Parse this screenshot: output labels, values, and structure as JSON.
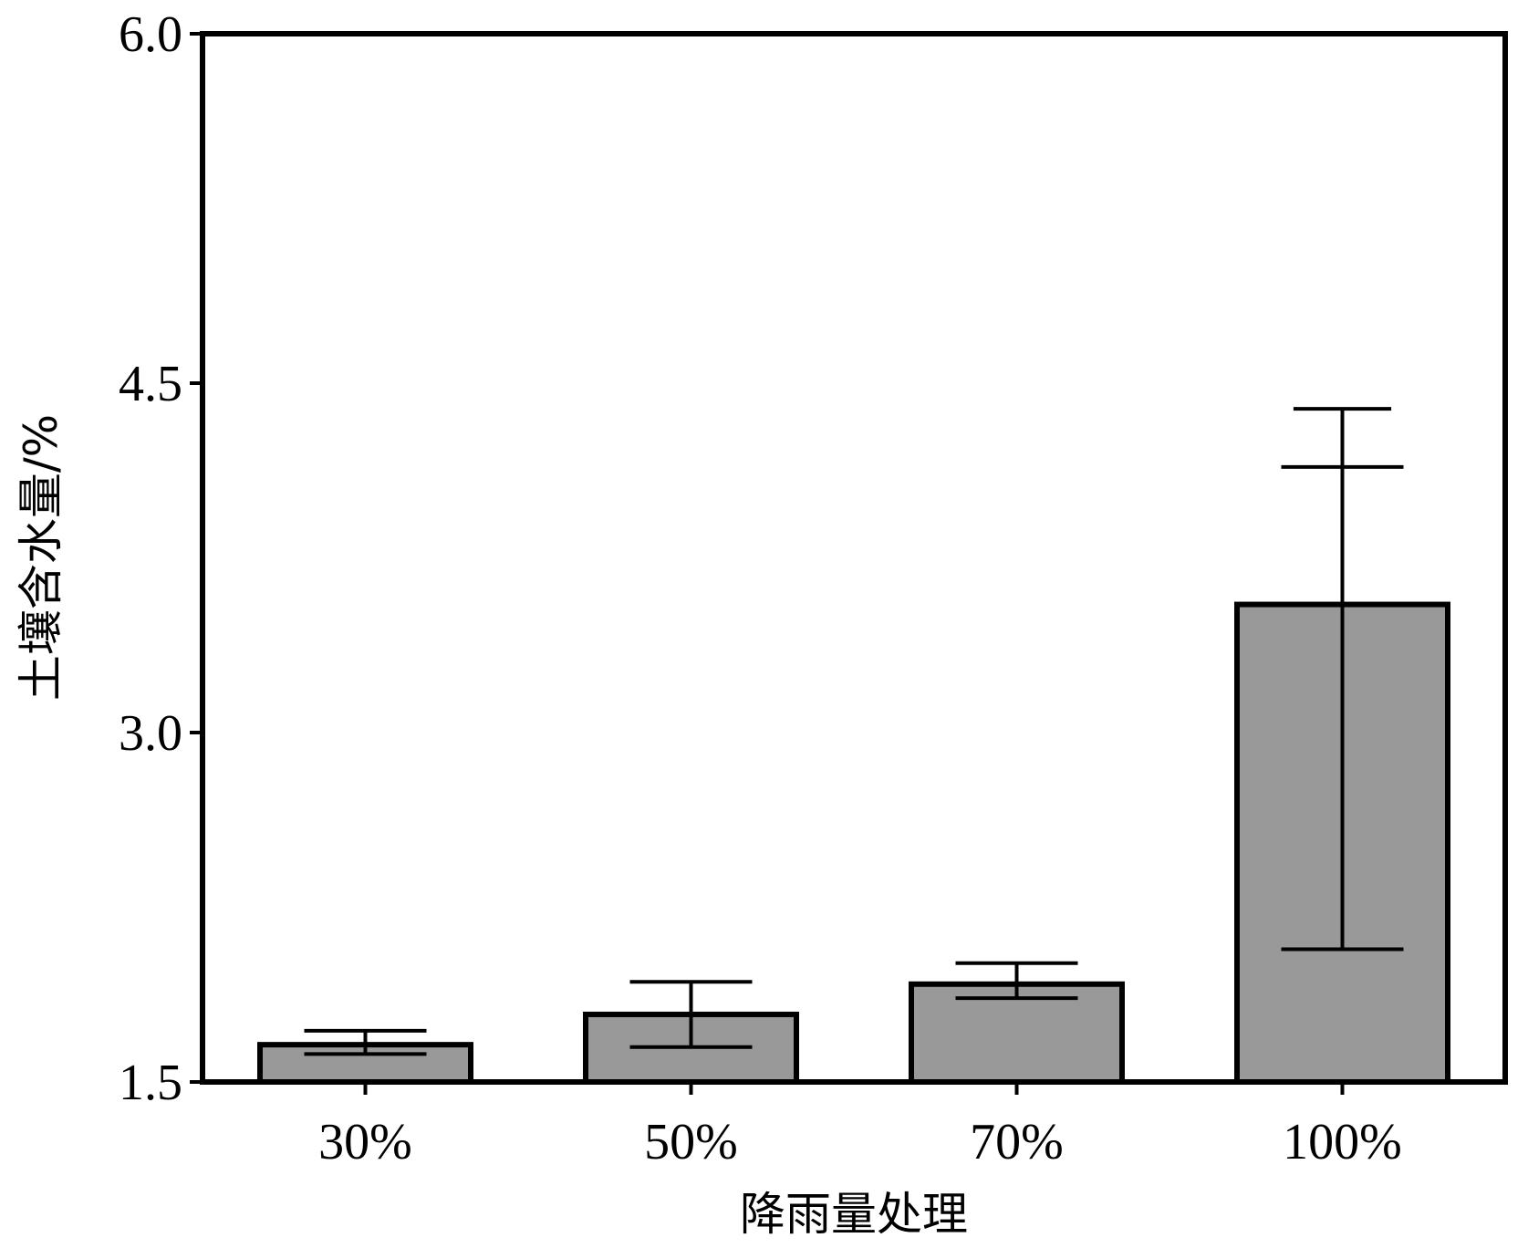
{
  "chart_data": {
    "type": "bar",
    "title": "",
    "xlabel": "降雨量处理",
    "ylabel": "土壤含水量/%",
    "categories": [
      "30%",
      "50%",
      "70%",
      "100%"
    ],
    "values": [
      1.66,
      1.79,
      1.92,
      3.55
    ],
    "error_upper": [
      1.72,
      1.93,
      2.01,
      4.14
    ],
    "error_lower": [
      1.62,
      1.65,
      1.86,
      2.07
    ],
    "error_upper_outer": [
      null,
      null,
      null,
      4.39
    ],
    "ylim": [
      1.5,
      6.0
    ],
    "yticks": [
      "1.5",
      "3.0",
      "4.5",
      "6.0"
    ],
    "bar_color": "#999999",
    "grid": false,
    "legend": "none"
  }
}
